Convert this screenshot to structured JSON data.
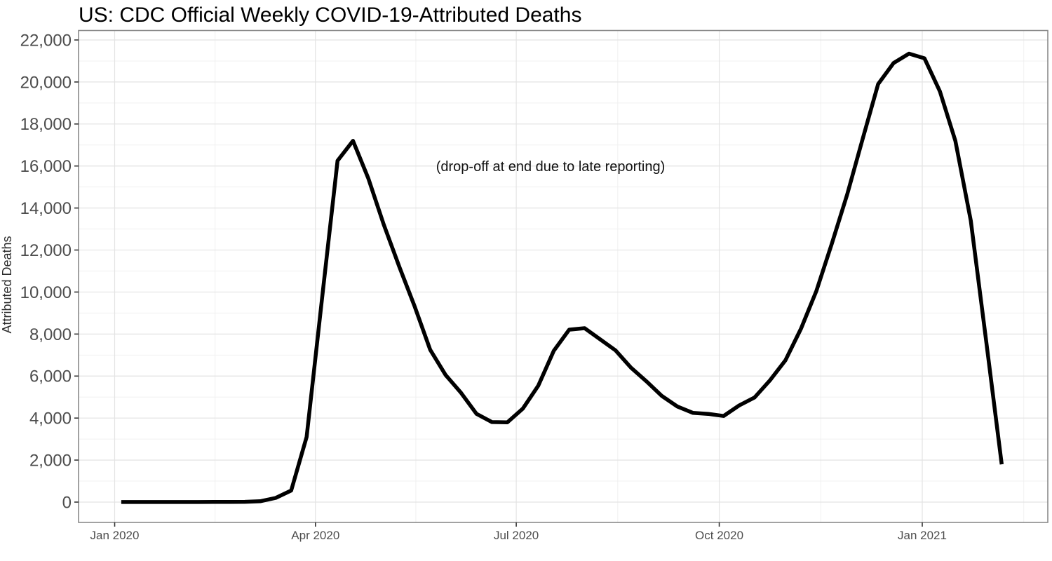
{
  "chart_data": {
    "type": "line",
    "title": "US: CDC Official Weekly COVID-19-Attributed Deaths",
    "xlabel": "",
    "ylabel": "Attributed Deaths",
    "annotation": "(drop-off at end due to late reporting)",
    "legend_position": "none",
    "grid": {
      "major": true,
      "minor": true
    },
    "ylim": [
      0,
      22000
    ],
    "x_range": [
      "2020-01-04",
      "2021-02-06"
    ],
    "y_ticks": [
      {
        "value": 0,
        "label": "0"
      },
      {
        "value": 2000,
        "label": "2,000"
      },
      {
        "value": 4000,
        "label": "4,000"
      },
      {
        "value": 6000,
        "label": "6,000"
      },
      {
        "value": 8000,
        "label": "8,000"
      },
      {
        "value": 10000,
        "label": "10,000"
      },
      {
        "value": 12000,
        "label": "12,000"
      },
      {
        "value": 14000,
        "label": "14,000"
      },
      {
        "value": 16000,
        "label": "16,000"
      },
      {
        "value": 18000,
        "label": "18,000"
      },
      {
        "value": 20000,
        "label": "20,000"
      },
      {
        "value": 22000,
        "label": "22,000"
      }
    ],
    "x_ticks": [
      {
        "date": "2020-01-01",
        "label": "Jan 2020"
      },
      {
        "date": "2020-04-01",
        "label": "Apr 2020"
      },
      {
        "date": "2020-07-01",
        "label": "Jul 2020"
      },
      {
        "date": "2020-10-01",
        "label": "Oct 2020"
      },
      {
        "date": "2021-01-01",
        "label": "Jan 2021"
      }
    ],
    "series": [
      {
        "name": "Weekly COVID-19-attributed deaths",
        "color": "#000000",
        "points": [
          {
            "week_ending": "2020-01-04",
            "deaths": 3
          },
          {
            "week_ending": "2020-01-11",
            "deaths": 2
          },
          {
            "week_ending": "2020-01-18",
            "deaths": 2
          },
          {
            "week_ending": "2020-01-25",
            "deaths": 3
          },
          {
            "week_ending": "2020-02-01",
            "deaths": 3
          },
          {
            "week_ending": "2020-02-08",
            "deaths": 5
          },
          {
            "week_ending": "2020-02-15",
            "deaths": 6
          },
          {
            "week_ending": "2020-02-22",
            "deaths": 9
          },
          {
            "week_ending": "2020-02-29",
            "deaths": 12
          },
          {
            "week_ending": "2020-03-07",
            "deaths": 40
          },
          {
            "week_ending": "2020-03-14",
            "deaths": 200
          },
          {
            "week_ending": "2020-03-21",
            "deaths": 550
          },
          {
            "week_ending": "2020-03-28",
            "deaths": 3100
          },
          {
            "week_ending": "2020-04-04",
            "deaths": 9700
          },
          {
            "week_ending": "2020-04-11",
            "deaths": 16250
          },
          {
            "week_ending": "2020-04-18",
            "deaths": 17200
          },
          {
            "week_ending": "2020-04-25",
            "deaths": 15400
          },
          {
            "week_ending": "2020-05-02",
            "deaths": 13200
          },
          {
            "week_ending": "2020-05-09",
            "deaths": 11200
          },
          {
            "week_ending": "2020-05-16",
            "deaths": 9300
          },
          {
            "week_ending": "2020-05-23",
            "deaths": 7250
          },
          {
            "week_ending": "2020-05-30",
            "deaths": 6050
          },
          {
            "week_ending": "2020-06-06",
            "deaths": 5200
          },
          {
            "week_ending": "2020-06-13",
            "deaths": 4200
          },
          {
            "week_ending": "2020-06-20",
            "deaths": 3810
          },
          {
            "week_ending": "2020-06-27",
            "deaths": 3800
          },
          {
            "week_ending": "2020-07-04",
            "deaths": 4450
          },
          {
            "week_ending": "2020-07-11",
            "deaths": 5550
          },
          {
            "week_ending": "2020-07-18",
            "deaths": 7200
          },
          {
            "week_ending": "2020-07-25",
            "deaths": 8210
          },
          {
            "week_ending": "2020-08-01",
            "deaths": 8280
          },
          {
            "week_ending": "2020-08-08",
            "deaths": 7750
          },
          {
            "week_ending": "2020-08-15",
            "deaths": 7220
          },
          {
            "week_ending": "2020-08-22",
            "deaths": 6400
          },
          {
            "week_ending": "2020-08-29",
            "deaths": 5750
          },
          {
            "week_ending": "2020-09-05",
            "deaths": 5050
          },
          {
            "week_ending": "2020-09-12",
            "deaths": 4550
          },
          {
            "week_ending": "2020-09-19",
            "deaths": 4250
          },
          {
            "week_ending": "2020-09-26",
            "deaths": 4200
          },
          {
            "week_ending": "2020-10-03",
            "deaths": 4100
          },
          {
            "week_ending": "2020-10-10",
            "deaths": 4600
          },
          {
            "week_ending": "2020-10-17",
            "deaths": 4980
          },
          {
            "week_ending": "2020-10-24",
            "deaths": 5800
          },
          {
            "week_ending": "2020-10-31",
            "deaths": 6750
          },
          {
            "week_ending": "2020-11-07",
            "deaths": 8250
          },
          {
            "week_ending": "2020-11-14",
            "deaths": 10050
          },
          {
            "week_ending": "2020-11-21",
            "deaths": 12300
          },
          {
            "week_ending": "2020-11-28",
            "deaths": 14650
          },
          {
            "week_ending": "2020-12-05",
            "deaths": 17300
          },
          {
            "week_ending": "2020-12-12",
            "deaths": 19900
          },
          {
            "week_ending": "2020-12-19",
            "deaths": 20900
          },
          {
            "week_ending": "2020-12-26",
            "deaths": 21350
          },
          {
            "week_ending": "2021-01-02",
            "deaths": 21130
          },
          {
            "week_ending": "2021-01-09",
            "deaths": 19550
          },
          {
            "week_ending": "2021-01-16",
            "deaths": 17200
          },
          {
            "week_ending": "2021-01-23",
            "deaths": 13400
          },
          {
            "week_ending": "2021-01-30",
            "deaths": 7650
          },
          {
            "week_ending": "2021-02-06",
            "deaths": 1800
          }
        ]
      }
    ],
    "style": {
      "line_color": "#000000",
      "grid_major_color": "#e3e3e3",
      "grid_minor_color": "#f0f0f0",
      "panel_border_color": "#8a8a8a",
      "tick_color": "#333333",
      "tick_label_color": "#4d4d4d",
      "title_color": "#000000",
      "annotation_color": "#111111",
      "panel_background": "#ffffff"
    }
  }
}
